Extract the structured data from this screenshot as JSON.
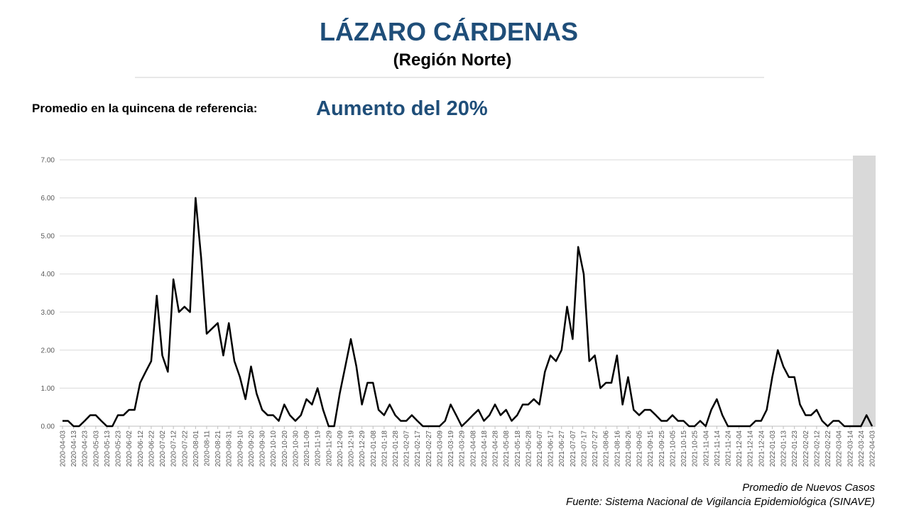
{
  "chart_data": {
    "type": "line",
    "title": "LÁZARO CÁRDENAS",
    "subtitle": "(Región Norte)",
    "reference_label": "Promedio en la quincena de referencia:",
    "reference_value": "Aumento del 20%",
    "series_label": "Promedio de Nuevos Casos",
    "source": "Fuente: Sistema Nacional de Vigilancia Epidemiológica (SINAVE)",
    "color": "#000000",
    "grid": true,
    "x": [
      "2020-04-03",
      "2020-04-08",
      "2020-04-13",
      "2020-04-18",
      "2020-04-23",
      "2020-04-28",
      "2020-05-03",
      "2020-05-08",
      "2020-05-13",
      "2020-05-18",
      "2020-05-23",
      "2020-05-28",
      "2020-06-02",
      "2020-06-07",
      "2020-06-12",
      "2020-06-17",
      "2020-06-22",
      "2020-06-27",
      "2020-07-02",
      "2020-07-07",
      "2020-07-12",
      "2020-07-17",
      "2020-07-22",
      "2020-07-27",
      "2020-08-01",
      "2020-08-06",
      "2020-08-11",
      "2020-08-16",
      "2020-08-21",
      "2020-08-26",
      "2020-08-31",
      "2020-09-05",
      "2020-09-10",
      "2020-09-15",
      "2020-09-20",
      "2020-09-25",
      "2020-09-30",
      "2020-10-05",
      "2020-10-10",
      "2020-10-15",
      "2020-10-20",
      "2020-10-25",
      "2020-10-30",
      "2020-11-04",
      "2020-11-09",
      "2020-11-14",
      "2020-11-19",
      "2020-11-24",
      "2020-11-29",
      "2020-12-04",
      "2020-12-09",
      "2020-12-14",
      "2020-12-19",
      "2020-12-24",
      "2020-12-29",
      "2021-01-03",
      "2021-01-08",
      "2021-01-13",
      "2021-01-18",
      "2021-01-23",
      "2021-01-28",
      "2021-02-02",
      "2021-02-07",
      "2021-02-12",
      "2021-02-17",
      "2021-02-22",
      "2021-02-27",
      "2021-03-04",
      "2021-03-09",
      "2021-03-14",
      "2021-03-19",
      "2021-03-24",
      "2021-03-29",
      "2021-04-03",
      "2021-04-08",
      "2021-04-13",
      "2021-04-18",
      "2021-04-23",
      "2021-04-28",
      "2021-05-03",
      "2021-05-08",
      "2021-05-13",
      "2021-05-18",
      "2021-05-23",
      "2021-05-28",
      "2021-06-02",
      "2021-06-07",
      "2021-06-12",
      "2021-06-17",
      "2021-06-22",
      "2021-06-27",
      "2021-07-02",
      "2021-07-07",
      "2021-07-12",
      "2021-07-17",
      "2021-07-22",
      "2021-07-27",
      "2021-08-01",
      "2021-08-06",
      "2021-08-11",
      "2021-08-16",
      "2021-08-21",
      "2021-08-26",
      "2021-08-31",
      "2021-09-05",
      "2021-09-10",
      "2021-09-15",
      "2021-09-20",
      "2021-09-25",
      "2021-09-30",
      "2021-10-05",
      "2021-10-10",
      "2021-10-15",
      "2021-10-20",
      "2021-10-25",
      "2021-10-30",
      "2021-11-04",
      "2021-11-09",
      "2021-11-14",
      "2021-11-19",
      "2021-11-24",
      "2021-11-29",
      "2021-12-04",
      "2021-12-09",
      "2021-12-14",
      "2021-12-19",
      "2021-12-24",
      "2021-12-29",
      "2022-01-03",
      "2022-01-08",
      "2022-01-13",
      "2022-01-18",
      "2022-01-23",
      "2022-01-28",
      "2022-02-02",
      "2022-02-07",
      "2022-02-12",
      "2022-02-17",
      "2022-02-22",
      "2022-02-27",
      "2022-03-04",
      "2022-03-09",
      "2022-03-14",
      "2022-03-19",
      "2022-03-24",
      "2022-03-29",
      "2022-04-03"
    ],
    "values": [
      0.14,
      0.14,
      0,
      0,
      0.14,
      0.29,
      0.29,
      0.14,
      0,
      0,
      0.29,
      0.29,
      0.43,
      0.43,
      1.14,
      1.43,
      1.71,
      3.43,
      1.86,
      1.43,
      3.86,
      3.0,
      3.14,
      3.0,
      6.0,
      4.43,
      2.43,
      2.57,
      2.71,
      1.86,
      2.71,
      1.71,
      1.29,
      0.71,
      1.57,
      0.86,
      0.43,
      0.29,
      0.29,
      0.14,
      0.57,
      0.29,
      0.14,
      0.29,
      0.71,
      0.57,
      1.0,
      0.43,
      0,
      0,
      0.86,
      1.57,
      2.29,
      1.57,
      0.57,
      1.14,
      1.14,
      0.43,
      0.29,
      0.57,
      0.29,
      0.14,
      0.14,
      0.29,
      0.14,
      0,
      0,
      0,
      0,
      0.14,
      0.57,
      0.29,
      0,
      0.14,
      0.29,
      0.43,
      0.14,
      0.29,
      0.57,
      0.29,
      0.43,
      0.14,
      0.29,
      0.57,
      0.57,
      0.71,
      0.57,
      1.43,
      1.86,
      1.71,
      2.0,
      3.14,
      2.29,
      4.71,
      4.0,
      1.71,
      1.86,
      1.0,
      1.14,
      1.14,
      1.86,
      0.57,
      1.29,
      0.43,
      0.29,
      0.43,
      0.43,
      0.29,
      0.14,
      0.14,
      0.29,
      0.14,
      0.14,
      0,
      0,
      0.14,
      0,
      0.43,
      0.71,
      0.29,
      0,
      0,
      0,
      0,
      0,
      0.14,
      0.14,
      0.43,
      1.29,
      2.0,
      1.57,
      1.29,
      1.29,
      0.57,
      0.29,
      0.29,
      0.43,
      0.14,
      0,
      0.14,
      0.14,
      0,
      0,
      0,
      0,
      0.29,
      0
    ],
    "xlim": [
      "2020-04-03",
      "2022-04-03"
    ],
    "xticks": [
      "2020-04-03",
      "2020-04-13",
      "2020-04-23",
      "2020-05-03",
      "2020-05-13",
      "2020-05-23",
      "2020-06-02",
      "2020-06-12",
      "2020-06-22",
      "2020-07-02",
      "2020-07-12",
      "2020-07-22",
      "2020-08-01",
      "2020-08-11",
      "2020-08-21",
      "2020-08-31",
      "2020-09-10",
      "2020-09-20",
      "2020-09-30",
      "2020-10-10",
      "2020-10-20",
      "2020-10-30",
      "2020-11-09",
      "2020-11-19",
      "2020-11-29",
      "2020-12-09",
      "2020-12-19",
      "2020-12-29",
      "2021-01-08",
      "2021-01-18",
      "2021-01-28",
      "2021-02-07",
      "2021-02-17",
      "2021-02-27",
      "2021-03-09",
      "2021-03-19",
      "2021-03-29",
      "2021-04-08",
      "2021-04-18",
      "2021-04-28",
      "2021-05-08",
      "2021-05-18",
      "2021-05-28",
      "2021-06-07",
      "2021-06-17",
      "2021-06-27",
      "2021-07-07",
      "2021-07-17",
      "2021-07-27",
      "2021-08-06",
      "2021-08-16",
      "2021-08-26",
      "2021-09-05",
      "2021-09-15",
      "2021-09-25",
      "2021-10-05",
      "2021-10-15",
      "2021-10-25",
      "2021-11-04",
      "2021-11-14",
      "2021-11-24",
      "2021-12-04",
      "2021-12-14",
      "2021-12-24",
      "2022-01-03",
      "2022-01-13",
      "2022-01-23",
      "2022-02-02",
      "2022-02-12",
      "2022-02-22",
      "2022-03-04",
      "2022-03-14",
      "2022-03-24",
      "2022-04-03"
    ],
    "ylim": [
      0,
      7
    ],
    "yticks": [
      {
        "value": 0,
        "label": "0.00"
      },
      {
        "value": 1,
        "label": "1.00"
      },
      {
        "value": 2,
        "label": "2.00"
      },
      {
        "value": 3,
        "label": "3.00"
      },
      {
        "value": 4,
        "label": "4.00"
      },
      {
        "value": 5,
        "label": "5.00"
      },
      {
        "value": 6,
        "label": "6.00"
      },
      {
        "value": 7,
        "label": "7.00"
      }
    ]
  }
}
